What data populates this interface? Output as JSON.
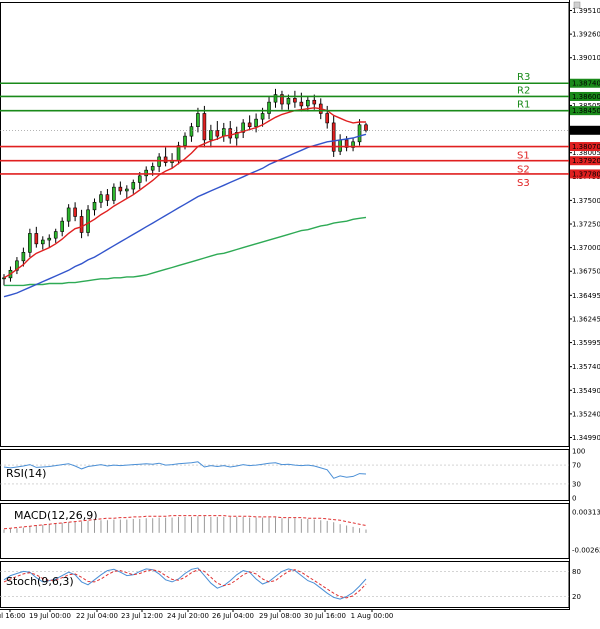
{
  "chart_data": {
    "type": "candlestick",
    "symbol_hint": "",
    "colors": {
      "bull": "#2eb82e",
      "bear": "#e02020",
      "ma_fast": "#e02020",
      "ma_mid": "#3355cc",
      "ma_slow": "#2eaa55",
      "resistance": "#1a8a1a",
      "support": "#e02020",
      "panel_line": "#4a8fd6",
      "signal_line": "#e03030",
      "price_box": "#000000"
    },
    "price_axis": {
      "min": 1.349,
      "max": 1.396,
      "ticks": [
        "1.39510",
        "1.39260",
        "1.39010",
        "1.38505",
        "1.38005",
        "1.37755",
        "1.37500",
        "1.37250",
        "1.37000",
        "1.36750",
        "1.36495",
        "1.36245",
        "1.35995",
        "1.35740",
        "1.35490",
        "1.35240",
        "1.34990"
      ]
    },
    "current_price": "1.38242",
    "levels": [
      {
        "name": "R3",
        "value": 1.3874,
        "label": "1.38740",
        "kind": "resistance"
      },
      {
        "name": "R2",
        "value": 1.386,
        "label": "1.38600",
        "kind": "resistance"
      },
      {
        "name": "R1",
        "value": 1.3845,
        "label": "1.38450",
        "kind": "resistance"
      },
      {
        "name": "S1",
        "value": 1.3807,
        "label": "1.38070",
        "kind": "support"
      },
      {
        "name": "S2",
        "value": 1.3792,
        "label": "1.37920",
        "kind": "support"
      },
      {
        "name": "S3",
        "value": 1.3778,
        "label": "1.37780",
        "kind": "support"
      }
    ],
    "time_labels": [
      "Jul 16:00",
      "19 Jul 00:00",
      "22 Jul 04:00",
      "23 Jul 12:00",
      "24 Jul 20:00",
      "26 Jul 04:00",
      "29 Jul 08:00",
      "30 Jul 16:00",
      "1 Aug 00:00"
    ],
    "candles": [
      [
        1.3667,
        1.3672,
        1.366,
        1.3668
      ],
      [
        1.3668,
        1.368,
        1.3664,
        1.3676
      ],
      [
        1.3676,
        1.369,
        1.3672,
        1.3686
      ],
      [
        1.3686,
        1.37,
        1.368,
        1.3695
      ],
      [
        1.3695,
        1.372,
        1.369,
        1.3715
      ],
      [
        1.3715,
        1.3722,
        1.37,
        1.3704
      ],
      [
        1.3704,
        1.3712,
        1.3698,
        1.3708
      ],
      [
        1.3708,
        1.3714,
        1.37,
        1.371
      ],
      [
        1.371,
        1.372,
        1.3705,
        1.3717
      ],
      [
        1.3717,
        1.3732,
        1.3712,
        1.3728
      ],
      [
        1.3728,
        1.3746,
        1.3722,
        1.3742
      ],
      [
        1.3742,
        1.3748,
        1.3728,
        1.3733
      ],
      [
        1.3733,
        1.374,
        1.371,
        1.3716
      ],
      [
        1.3716,
        1.3745,
        1.3712,
        1.374
      ],
      [
        1.374,
        1.3752,
        1.3734,
        1.3748
      ],
      [
        1.3748,
        1.376,
        1.3742,
        1.3756
      ],
      [
        1.3756,
        1.3762,
        1.3744,
        1.375
      ],
      [
        1.375,
        1.3768,
        1.3746,
        1.3764
      ],
      [
        1.3764,
        1.377,
        1.3756,
        1.376
      ],
      [
        1.376,
        1.3766,
        1.3752,
        1.3762
      ],
      [
        1.3762,
        1.3772,
        1.3757,
        1.3769
      ],
      [
        1.3769,
        1.378,
        1.3762,
        1.3776
      ],
      [
        1.3776,
        1.3786,
        1.377,
        1.3782
      ],
      [
        1.3782,
        1.379,
        1.3776,
        1.3786
      ],
      [
        1.3786,
        1.38,
        1.378,
        1.3796
      ],
      [
        1.3796,
        1.3806,
        1.3786,
        1.379
      ],
      [
        1.379,
        1.38,
        1.3784,
        1.3792
      ],
      [
        1.3792,
        1.3812,
        1.3788,
        1.3808
      ],
      [
        1.3808,
        1.3822,
        1.3804,
        1.3818
      ],
      [
        1.3818,
        1.3832,
        1.3812,
        1.3828
      ],
      [
        1.3828,
        1.3848,
        1.3822,
        1.3842
      ],
      [
        1.3842,
        1.385,
        1.3806,
        1.3814
      ],
      [
        1.3814,
        1.383,
        1.3806,
        1.3824
      ],
      [
        1.3824,
        1.3834,
        1.3814,
        1.3818
      ],
      [
        1.3818,
        1.3832,
        1.3812,
        1.3826
      ],
      [
        1.3826,
        1.3834,
        1.381,
        1.3816
      ],
      [
        1.3816,
        1.3828,
        1.3808,
        1.3822
      ],
      [
        1.3822,
        1.3836,
        1.3816,
        1.3832
      ],
      [
        1.3832,
        1.384,
        1.3824,
        1.3828
      ],
      [
        1.3828,
        1.3842,
        1.3822,
        1.3836
      ],
      [
        1.3836,
        1.3848,
        1.3828,
        1.3842
      ],
      [
        1.3842,
        1.386,
        1.3836,
        1.3854
      ],
      [
        1.3854,
        1.3868,
        1.3848,
        1.3862
      ],
      [
        1.3862,
        1.3866,
        1.3846,
        1.3852
      ],
      [
        1.3852,
        1.3862,
        1.3846,
        1.3858
      ],
      [
        1.3858,
        1.3866,
        1.3848,
        1.3854
      ],
      [
        1.3854,
        1.3864,
        1.3844,
        1.385
      ],
      [
        1.385,
        1.386,
        1.3844,
        1.3856
      ],
      [
        1.3856,
        1.3862,
        1.3846,
        1.3852
      ],
      [
        1.3852,
        1.3858,
        1.3836,
        1.3842
      ],
      [
        1.3842,
        1.385,
        1.3826,
        1.3832
      ],
      [
        1.3832,
        1.384,
        1.3796,
        1.3802
      ],
      [
        1.3802,
        1.382,
        1.3798,
        1.3814
      ],
      [
        1.3814,
        1.3818,
        1.3802,
        1.3806
      ],
      [
        1.3806,
        1.3816,
        1.3802,
        1.3812
      ],
      [
        1.3812,
        1.3836,
        1.3808,
        1.383
      ],
      [
        1.383,
        1.3832,
        1.3822,
        1.3824
      ]
    ],
    "ma_fast": [
      1.3668,
      1.3672,
      1.3677,
      1.3682,
      1.3689,
      1.3694,
      1.3697,
      1.37,
      1.3704,
      1.3709,
      1.3715,
      1.372,
      1.3722,
      1.3726,
      1.373,
      1.3735,
      1.3739,
      1.3744,
      1.3748,
      1.3752,
      1.3756,
      1.3761,
      1.3766,
      1.3771,
      1.3777,
      1.3781,
      1.3784,
      1.3789,
      1.3794,
      1.38,
      1.3807,
      1.381,
      1.3813,
      1.3815,
      1.3818,
      1.3819,
      1.3821,
      1.3823,
      1.3825,
      1.3827,
      1.383,
      1.3834,
      1.3838,
      1.3841,
      1.3843,
      1.3845,
      1.3846,
      1.3847,
      1.3848,
      1.3847,
      1.3845,
      1.384,
      1.3837,
      1.3834,
      1.3832,
      1.3833,
      1.3833
    ],
    "ma_mid": [
      1.3648,
      1.365,
      1.3652,
      1.3655,
      1.3658,
      1.3661,
      1.3664,
      1.3667,
      1.367,
      1.3673,
      1.3676,
      1.368,
      1.3683,
      1.3687,
      1.369,
      1.3694,
      1.3698,
      1.3702,
      1.3706,
      1.371,
      1.3714,
      1.3718,
      1.3722,
      1.3726,
      1.373,
      1.3734,
      1.3738,
      1.3742,
      1.3746,
      1.375,
      1.3754,
      1.3757,
      1.376,
      1.3763,
      1.3766,
      1.3769,
      1.3772,
      1.3775,
      1.3778,
      1.3781,
      1.3784,
      1.3788,
      1.3791,
      1.3794,
      1.3797,
      1.38,
      1.3803,
      1.3806,
      1.3808,
      1.381,
      1.3812,
      1.3813,
      1.3814,
      1.3815,
      1.3816,
      1.3818,
      1.382
    ],
    "ma_slow": [
      1.366,
      1.366,
      1.366,
      1.366,
      1.3661,
      1.3661,
      1.3661,
      1.3662,
      1.3662,
      1.3662,
      1.3663,
      1.3663,
      1.3664,
      1.3665,
      1.3666,
      1.3667,
      1.3667,
      1.3668,
      1.3668,
      1.3669,
      1.3669,
      1.367,
      1.3671,
      1.3673,
      1.3675,
      1.3677,
      1.3679,
      1.3681,
      1.3683,
      1.3685,
      1.3687,
      1.3689,
      1.3691,
      1.3693,
      1.3694,
      1.3696,
      1.3698,
      1.37,
      1.3702,
      1.3704,
      1.3706,
      1.3708,
      1.371,
      1.3712,
      1.3714,
      1.3716,
      1.3718,
      1.3719,
      1.3721,
      1.3723,
      1.3724,
      1.3726,
      1.3727,
      1.3728,
      1.373,
      1.3731,
      1.3732
    ],
    "rsi": {
      "label": "RSI(14)",
      "ticks": [
        "100",
        "70",
        "30",
        "0"
      ],
      "range": [
        0,
        100
      ],
      "values": [
        66,
        64,
        66,
        68,
        71,
        65,
        66,
        67,
        69,
        71,
        73,
        68,
        62,
        67,
        69,
        71,
        68,
        70,
        69,
        70,
        71,
        72,
        73,
        72,
        74,
        70,
        71,
        73,
        74,
        75,
        77,
        66,
        69,
        67,
        69,
        66,
        68,
        71,
        69,
        70,
        72,
        74,
        75,
        71,
        72,
        70,
        69,
        70,
        68,
        64,
        60,
        42,
        47,
        44,
        46,
        52,
        51
      ]
    },
    "macd": {
      "label": "MACD(12,26,9)",
      "ticks": [
        "0.003137",
        "-0.002629"
      ],
      "range": [
        -0.0035,
        0.0042
      ],
      "hist": [
        0.0005,
        0.0006,
        0.0007,
        0.0008,
        0.001,
        0.0011,
        0.0012,
        0.0013,
        0.0014,
        0.0015,
        0.0016,
        0.0017,
        0.0017,
        0.0018,
        0.0018,
        0.0019,
        0.0019,
        0.002,
        0.002,
        0.002,
        0.0021,
        0.0021,
        0.0022,
        0.0022,
        0.0023,
        0.0023,
        0.0023,
        0.0024,
        0.0024,
        0.0024,
        0.0025,
        0.0025,
        0.0024,
        0.0024,
        0.0024,
        0.0024,
        0.0024,
        0.0024,
        0.0023,
        0.0023,
        0.0023,
        0.0023,
        0.0023,
        0.0022,
        0.0022,
        0.0022,
        0.0021,
        0.0021,
        0.002,
        0.0019,
        0.0018,
        0.0016,
        0.0013,
        0.0011,
        0.0009,
        0.0007,
        0.0005
      ],
      "signal": [
        0.0006,
        0.0007,
        0.0008,
        0.0009,
        0.001,
        0.0011,
        0.0012,
        0.0013,
        0.0014,
        0.0015,
        0.0016,
        0.0017,
        0.0018,
        0.0019,
        0.002,
        0.0021,
        0.0022,
        0.0022,
        0.0023,
        0.0023,
        0.0024,
        0.0024,
        0.0025,
        0.0025,
        0.0025,
        0.0025,
        0.0026,
        0.0026,
        0.0026,
        0.0026,
        0.0026,
        0.0026,
        0.0026,
        0.0026,
        0.0026,
        0.0025,
        0.0025,
        0.0025,
        0.0025,
        0.0024,
        0.0024,
        0.0024,
        0.0024,
        0.0023,
        0.0023,
        0.0023,
        0.0023,
        0.0022,
        0.0022,
        0.0022,
        0.0021,
        0.002,
        0.0019,
        0.0017,
        0.0015,
        0.0013,
        0.0011
      ]
    },
    "stoch": {
      "label": "Stoch(9,6,3)",
      "ticks": [
        "80",
        "20"
      ],
      "range": [
        0,
        100
      ],
      "main": [
        60,
        70,
        75,
        80,
        78,
        65,
        55,
        58,
        62,
        70,
        78,
        72,
        55,
        48,
        60,
        72,
        82,
        85,
        78,
        70,
        72,
        80,
        86,
        84,
        74,
        60,
        55,
        62,
        75,
        85,
        88,
        70,
        52,
        40,
        46,
        58,
        72,
        82,
        78,
        62,
        50,
        56,
        68,
        80,
        86,
        82,
        70,
        58,
        52,
        40,
        28,
        18,
        14,
        20,
        30,
        45,
        62
      ],
      "signal": [
        55,
        62,
        68,
        74,
        77,
        72,
        63,
        58,
        60,
        65,
        72,
        74,
        66,
        56,
        55,
        62,
        72,
        80,
        82,
        77,
        72,
        75,
        81,
        84,
        80,
        70,
        61,
        59,
        66,
        77,
        84,
        80,
        66,
        52,
        46,
        50,
        60,
        72,
        79,
        74,
        62,
        55,
        58,
        70,
        80,
        84,
        78,
        68,
        58,
        48,
        38,
        28,
        20,
        17,
        22,
        34,
        50
      ]
    }
  }
}
